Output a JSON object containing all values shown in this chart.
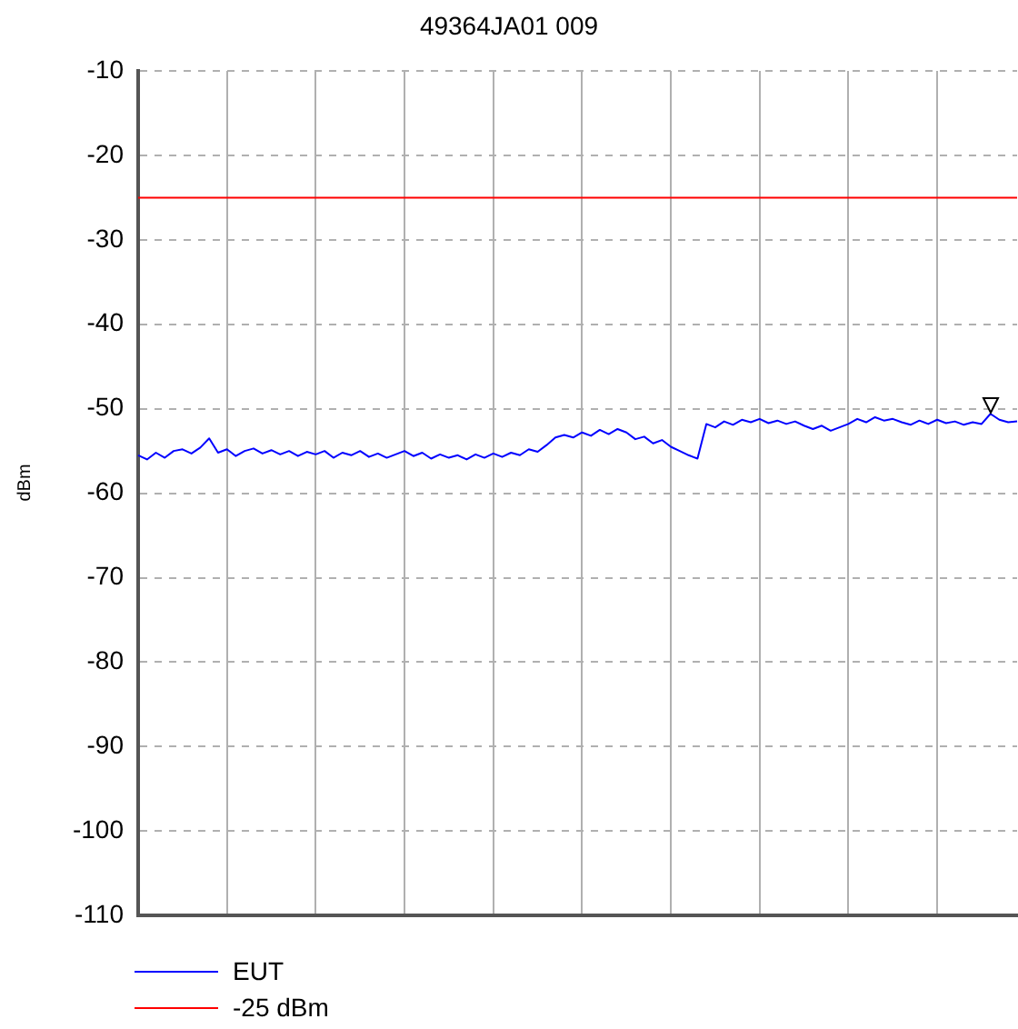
{
  "chart_data": {
    "type": "line",
    "title": "49364JA01 009",
    "ylabel": "dBm",
    "categories": [
      null,
      null,
      null,
      null,
      null,
      null,
      null,
      null,
      null,
      null,
      null,
      null,
      null,
      null,
      null,
      null,
      null,
      null,
      null,
      null,
      null,
      null,
      null,
      null,
      null,
      null,
      null,
      null,
      null,
      null,
      null,
      null,
      null,
      null,
      null,
      null,
      null,
      null,
      null,
      null,
      null,
      null,
      null,
      null,
      null,
      null,
      null,
      null,
      null,
      null,
      null,
      null,
      null,
      null,
      null,
      null,
      null,
      null,
      null,
      null,
      null,
      null,
      null,
      null,
      null,
      null,
      null,
      null,
      null,
      null,
      null,
      null,
      null,
      null,
      null,
      null,
      null,
      null,
      null,
      null,
      null,
      null,
      null,
      null,
      null,
      null,
      null,
      null,
      null,
      null,
      null,
      null,
      null,
      null,
      null,
      null,
      null,
      null,
      null,
      null
    ],
    "series": [
      {
        "name": "EUT",
        "color": "#0000ff",
        "values": [
          -55.5,
          -56,
          -55.2,
          -55.8,
          -55,
          -54.8,
          -55.3,
          -54.6,
          -53.5,
          -55.2,
          -54.8,
          -55.6,
          -55,
          -54.7,
          -55.3,
          -54.9,
          -55.4,
          -55,
          -55.6,
          -55.1,
          -55.4,
          -55,
          -55.8,
          -55.2,
          -55.5,
          -55,
          -55.7,
          -55.3,
          -55.8,
          -55.4,
          -55,
          -55.6,
          -55.2,
          -55.9,
          -55.4,
          -55.8,
          -55.5,
          -56,
          -55.4,
          -55.8,
          -55.3,
          -55.7,
          -55.2,
          -55.5,
          -54.8,
          -55.1,
          -54.3,
          -53.4,
          -53.1,
          -53.4,
          -52.8,
          -53.2,
          -52.5,
          -53,
          -52.4,
          -52.8,
          -53.6,
          -53.3,
          -54.1,
          -53.7,
          -54.5,
          -55,
          -55.5,
          -55.9,
          -51.8,
          -52.2,
          -51.5,
          -51.9,
          -51.3,
          -51.6,
          -51.2,
          -51.7,
          -51.4,
          -51.8,
          -51.5,
          -52,
          -52.4,
          -52,
          -52.6,
          -52.2,
          -51.8,
          -51.2,
          -51.6,
          -51,
          -51.4,
          -51.2,
          -51.6,
          -51.9,
          -51.4,
          -51.8,
          -51.3,
          -51.7,
          -51.5,
          -51.9,
          -51.6,
          -51.8,
          -50.6,
          -51.3,
          -51.6,
          -51.5
        ]
      },
      {
        "name": "-25 dBm",
        "color": "#ff0000",
        "values": [
          -25,
          -25,
          -25,
          -25,
          -25,
          -25,
          -25,
          -25,
          -25,
          -25,
          -25,
          -25,
          -25,
          -25,
          -25,
          -25,
          -25,
          -25,
          -25,
          -25,
          -25,
          -25,
          -25,
          -25,
          -25,
          -25,
          -25,
          -25,
          -25,
          -25,
          -25,
          -25,
          -25,
          -25,
          -25,
          -25,
          -25,
          -25,
          -25,
          -25,
          -25,
          -25,
          -25,
          -25,
          -25,
          -25,
          -25,
          -25,
          -25,
          -25,
          -25,
          -25,
          -25,
          -25,
          -25,
          -25,
          -25,
          -25,
          -25,
          -25,
          -25,
          -25,
          -25,
          -25,
          -25,
          -25,
          -25,
          -25,
          -25,
          -25,
          -25,
          -25,
          -25,
          -25,
          -25,
          -25,
          -25,
          -25,
          -25,
          -25,
          -25,
          -25,
          -25,
          -25,
          -25,
          -25,
          -25,
          -25,
          -25,
          -25,
          -25,
          -25,
          -25,
          -25,
          -25,
          -25,
          -25,
          -25,
          -25,
          -25
        ]
      }
    ],
    "ylim": [
      -110,
      -10
    ],
    "yticks": [
      -10,
      -20,
      -30,
      -40,
      -50,
      -60,
      -70,
      -80,
      -90,
      -100,
      -110
    ],
    "grid": true,
    "legend": "bottom left",
    "tick_labels": "y",
    "marker": "none",
    "line_style": "solid"
  }
}
